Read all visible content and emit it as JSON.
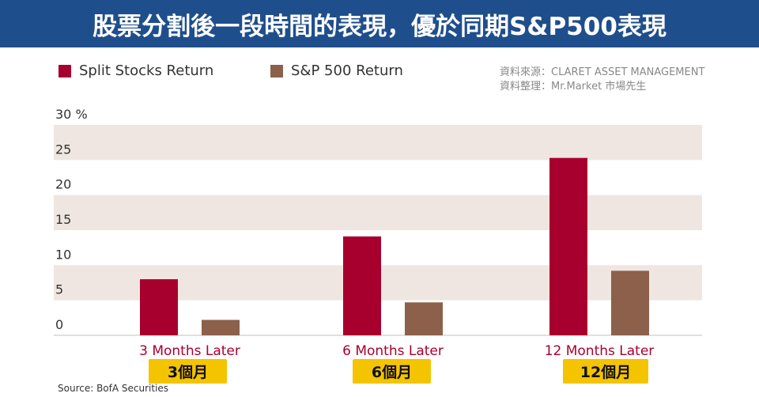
{
  "header": {
    "title": "股票分割後一段時間的表現，優於同期S&P500表現"
  },
  "credits": {
    "line1": "資料來源：CLARET ASSET MANAGEMENT",
    "line2": "資料整理：Mr.Market 市場先生"
  },
  "badges": [
    "3個月",
    "6個月",
    "12個月"
  ],
  "footer": {
    "source": "Source: BofA Securities"
  },
  "colors": {
    "header_bg": "#1f4e8c",
    "split_series": "#a8002e",
    "sp500_series": "#8c604a",
    "band": "#efe6e1",
    "category_label": "#a8002e",
    "badge_bg": "#f5c400"
  },
  "chart_data": {
    "type": "bar",
    "categories": [
      "3 Months Later",
      "6 Months Later",
      "12 Months Later"
    ],
    "series": [
      {
        "name": "Split Stocks Return",
        "values": [
          8,
          14.1,
          25.3
        ]
      },
      {
        "name": "S&P 500 Return",
        "values": [
          2.2,
          4.7,
          9.2
        ]
      }
    ],
    "y_ticks": [
      "0",
      "5",
      "10",
      "15",
      "20",
      "25",
      "30"
    ],
    "y_unit": "%",
    "ylim": [
      0,
      30
    ],
    "legend_position": "top-left",
    "grid": "alternating bands"
  }
}
